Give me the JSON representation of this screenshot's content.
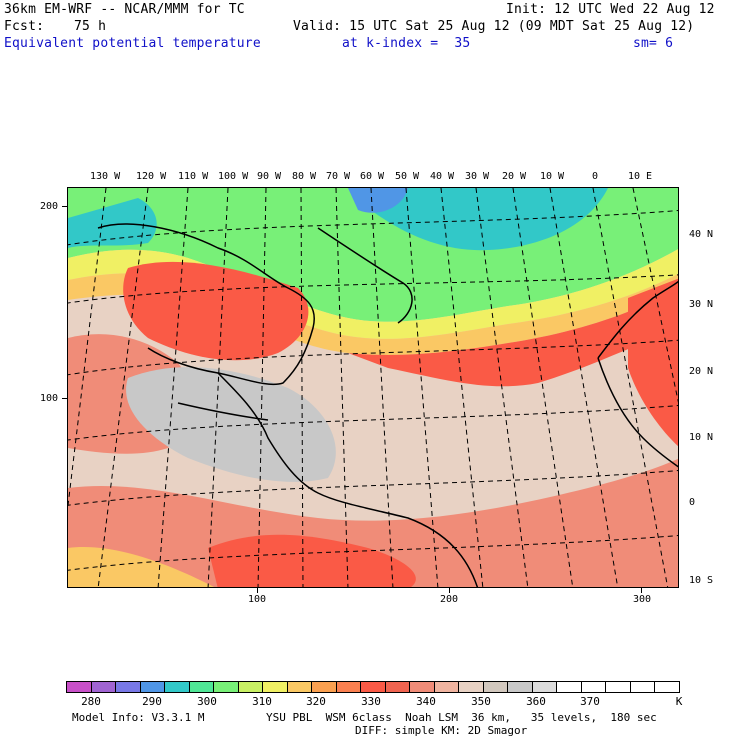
{
  "header": {
    "model_title": "36km EM-WRF -- NCAR/MMM for TC",
    "init": "Init: 12 UTC Wed 22 Aug 12",
    "fcst_label": "Fcst:",
    "fcst_value": "75 h",
    "valid": "Valid: 15 UTC Sat 25 Aug 12 (09 MDT Sat 25 Aug 12)",
    "field": "Equivalent potential temperature",
    "level": "at k-index =  35",
    "smoothing": "sm= 6"
  },
  "map": {
    "top_longitudes": [
      "130 W",
      "120 W",
      "110 W",
      "100 W",
      "90 W",
      "80 W",
      "70 W",
      "60 W",
      "50 W",
      "40 W",
      "30 W",
      "20 W",
      "10 W",
      "0",
      "10 E"
    ],
    "right_latitudes": [
      "40 N",
      "30 N",
      "20 N",
      "10 N",
      "0",
      "10 S"
    ],
    "left_grid_labels": [
      "200",
      "100"
    ],
    "bottom_grid_labels": [
      "100",
      "200",
      "300"
    ]
  },
  "colorbar": {
    "unit": "K",
    "labels": [
      "280",
      "290",
      "300",
      "310",
      "320",
      "330",
      "340",
      "350",
      "360",
      "370"
    ],
    "colors": [
      "#c850c8",
      "#a064d2",
      "#7878e6",
      "#5096e6",
      "#32c8c8",
      "#50e696",
      "#78f078",
      "#c8f064",
      "#f0f064",
      "#fac864",
      "#faa050",
      "#fa8050",
      "#fa5a46",
      "#f06450",
      "#f08c78",
      "#f0b4a0",
      "#e8d2c4",
      "#d2c8be",
      "#c8c8c8",
      "#dcdcdc",
      "#ffffff",
      "#ffffff",
      "#ffffff",
      "#ffffff",
      "#ffffff"
    ]
  },
  "footer": {
    "model_info": "Model Info: V3.3.1 M",
    "physics": "YSU PBL  WSM 6class  Noah LSM  36 km,   35 levels,  180 sec",
    "diffusion": "DIFF: simple KM: 2D Smagor"
  }
}
